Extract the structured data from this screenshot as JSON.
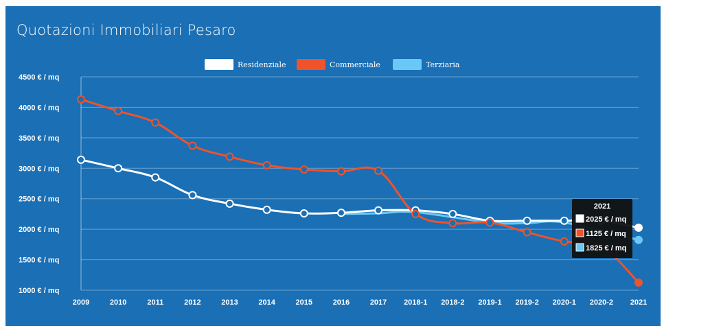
{
  "chart_data": {
    "type": "line",
    "title": "Quotazioni Immobiliari Pesaro",
    "categories": [
      "2009",
      "2010",
      "2011",
      "2012",
      "2013",
      "2014",
      "2015",
      "2016",
      "2017",
      "2018-1",
      "2018-2",
      "2019-1",
      "2019-2",
      "2020-1",
      "2020-2",
      "2021"
    ],
    "ylim": [
      1000,
      4500
    ],
    "yticks": [
      "1000 € / mq",
      "1500 € / mq",
      "2000 € / mq",
      "2500 € / mq",
      "3000 € / mq",
      "3500 € / mq",
      "4000 € / mq",
      "4500 € / mq"
    ],
    "grid": true,
    "legend_position": "top-center",
    "series": [
      {
        "name": "Residenziale",
        "color": "#ffffff",
        "values": [
          3140,
          3000,
          2850,
          2560,
          2420,
          2320,
          2260,
          2270,
          2310,
          2310,
          2250,
          2140,
          2140,
          2140,
          2140,
          2025
        ]
      },
      {
        "name": "Commerciale",
        "color": "#f0532a",
        "values": [
          4130,
          3940,
          3750,
          3370,
          3190,
          3050,
          2980,
          2950,
          2960,
          2250,
          2100,
          2110,
          1950,
          1800,
          1720,
          1125
        ]
      },
      {
        "name": "Terziaria",
        "color": "#69c8f5",
        "values": [
          null,
          null,
          null,
          null,
          null,
          null,
          null,
          2250,
          2260,
          2280,
          null,
          2110,
          2100,
          2110,
          null,
          1825
        ]
      }
    ],
    "tooltip": {
      "title": "2021",
      "rows": [
        "2025 € / mq",
        "1125 € / mq",
        "1825 € / mq"
      ]
    }
  }
}
